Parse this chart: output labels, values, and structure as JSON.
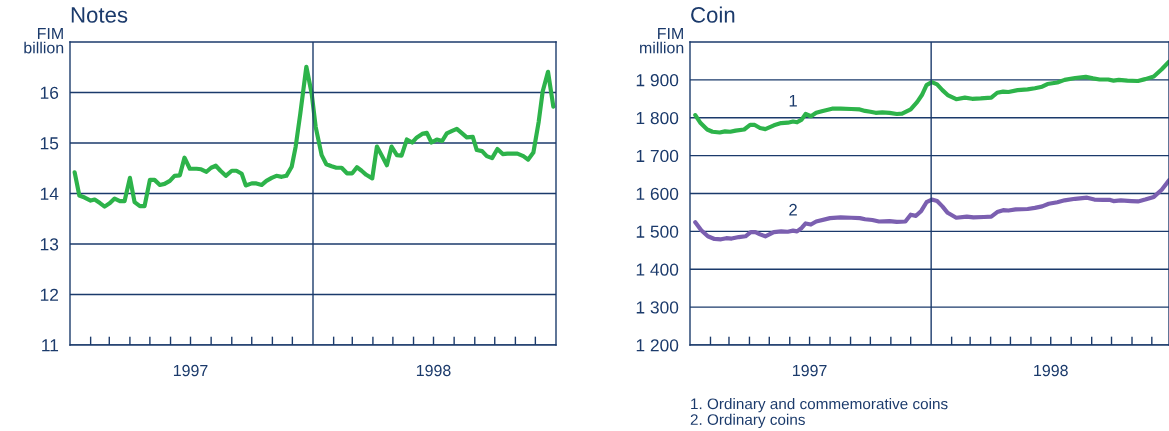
{
  "chart_data": [
    {
      "type": "line",
      "title": "Notes",
      "ylabel": "FIM\nbillion",
      "xlim": [
        "1997-01-01",
        "1999-01-01"
      ],
      "ylim": [
        11,
        17
      ],
      "yticks": [
        11,
        12,
        13,
        14,
        15,
        16
      ],
      "xticks": [
        {
          "value": "1997-02-01",
          "label": null
        },
        {
          "value": "1997-03-01",
          "label": null
        },
        {
          "value": "1997-04-01",
          "label": null
        },
        {
          "value": "1997-05-01",
          "label": null
        },
        {
          "value": "1997-06-01",
          "label": null
        },
        {
          "value": "1997-07-01",
          "label": "1997"
        },
        {
          "value": "1997-08-01",
          "label": null
        },
        {
          "value": "1997-09-01",
          "label": null
        },
        {
          "value": "1997-10-01",
          "label": null
        },
        {
          "value": "1997-11-01",
          "label": null
        },
        {
          "value": "1997-12-01",
          "label": null
        },
        {
          "value": "1998-02-01",
          "label": null
        },
        {
          "value": "1998-03-01",
          "label": null
        },
        {
          "value": "1998-04-01",
          "label": null
        },
        {
          "value": "1998-05-01",
          "label": null
        },
        {
          "value": "1998-06-01",
          "label": null
        },
        {
          "value": "1998-07-01",
          "label": "1998"
        },
        {
          "value": "1998-08-01",
          "label": null
        },
        {
          "value": "1998-09-01",
          "label": null
        },
        {
          "value": "1998-10-01",
          "label": null
        },
        {
          "value": "1998-11-01",
          "label": null
        },
        {
          "value": "1998-12-01",
          "label": null
        }
      ],
      "grid": "y",
      "ref_lines": [
        {
          "axis": "x",
          "value": "1998-01-01",
          "color": "#1b3a6b"
        }
      ],
      "series": [
        {
          "color": "#2db34a",
          "x": [
            "1997-01-08",
            "1997-01-15",
            "1997-01-23",
            "1997-02-01",
            "1997-02-07",
            "1997-02-15",
            "1997-02-22",
            "1997-03-02",
            "1997-03-09",
            "1997-03-17",
            "1997-03-24",
            "1997-04-01",
            "1997-04-08",
            "1997-04-16",
            "1997-04-23",
            "1997-05-01",
            "1997-05-08",
            "1997-05-16",
            "1997-05-23",
            "1997-05-31",
            "1997-06-07",
            "1997-06-15",
            "1997-06-22",
            "1997-06-30",
            "1997-07-10",
            "1997-07-17",
            "1997-07-25",
            "1997-08-01",
            "1997-08-08",
            "1997-08-15",
            "1997-08-23",
            "1997-09-01",
            "1997-09-08",
            "1997-09-16",
            "1997-09-22",
            "1997-10-01",
            "1997-10-08",
            "1997-10-16",
            "1997-10-23",
            "1997-10-31",
            "1997-11-07",
            "1997-11-15",
            "1997-11-22",
            "1997-11-30",
            "1997-12-06",
            "1997-12-13",
            "1997-12-22",
            "1997-12-30",
            "1998-01-05",
            "1998-01-14",
            "1998-01-21",
            "1998-01-29",
            "1998-02-05",
            "1998-02-13",
            "1998-02-21",
            "1998-03-01",
            "1998-03-08",
            "1998-03-15",
            "1998-03-22",
            "1998-03-31",
            "1998-04-07",
            "1998-04-14",
            "1998-04-22",
            "1998-04-29",
            "1998-05-07",
            "1998-05-14",
            "1998-05-22",
            "1998-05-30",
            "1998-06-06",
            "1998-06-14",
            "1998-06-21",
            "1998-06-28",
            "1998-07-06",
            "1998-07-14",
            "1998-07-21",
            "1998-07-29",
            "1998-08-05",
            "1998-08-13",
            "1998-08-20",
            "1998-08-29",
            "1998-09-04",
            "1998-09-12",
            "1998-09-19",
            "1998-09-27",
            "1998-10-05",
            "1998-10-13",
            "1998-10-20",
            "1998-10-28",
            "1998-11-04",
            "1998-11-13",
            "1998-11-20",
            "1998-11-28",
            "1998-12-06",
            "1998-12-12",
            "1998-12-20",
            "1998-12-28"
          ],
          "values": [
            14.42,
            13.96,
            13.92,
            13.86,
            13.88,
            13.81,
            13.74,
            13.81,
            13.9,
            13.85,
            13.85,
            14.31,
            13.83,
            13.75,
            13.75,
            14.27,
            14.27,
            14.17,
            14.19,
            14.25,
            14.35,
            14.36,
            14.71,
            14.49,
            14.49,
            14.48,
            14.43,
            14.51,
            14.55,
            14.45,
            14.35,
            14.45,
            14.45,
            14.39,
            14.16,
            14.2,
            14.2,
            14.17,
            14.25,
            14.31,
            14.35,
            14.33,
            14.35,
            14.53,
            14.93,
            15.59,
            16.51,
            15.98,
            15.32,
            14.76,
            14.58,
            14.54,
            14.51,
            14.51,
            14.4,
            14.4,
            14.52,
            14.45,
            14.37,
            14.3,
            14.93,
            14.76,
            14.56,
            14.93,
            14.76,
            14.75,
            15.07,
            15.01,
            15.11,
            15.18,
            15.2,
            15.01,
            15.07,
            15.04,
            15.19,
            15.24,
            15.28,
            15.19,
            15.11,
            15.12,
            14.86,
            14.84,
            14.74,
            14.7,
            14.88,
            14.78,
            14.79,
            14.79,
            14.79,
            14.74,
            14.67,
            14.81,
            15.42,
            16.02,
            16.41,
            15.72
          ]
        }
      ]
    },
    {
      "type": "line",
      "title": "Coin",
      "ylabel": "FIM\nmillion",
      "xlim": [
        "1997-01-01",
        "1998-12-27"
      ],
      "ylim": [
        1200,
        2000
      ],
      "yticks": [
        {
          "value": 1200,
          "label": "1 200"
        },
        {
          "value": 1300,
          "label": "1 300"
        },
        {
          "value": 1400,
          "label": "1 400"
        },
        {
          "value": 1500,
          "label": "1 500"
        },
        {
          "value": 1600,
          "label": "1 600"
        },
        {
          "value": 1700,
          "label": "1 700"
        },
        {
          "value": 1800,
          "label": "1 800"
        },
        {
          "value": 1900,
          "label": "1 900"
        }
      ],
      "xticks": [
        {
          "value": "1997-02-01",
          "label": null
        },
        {
          "value": "1997-03-01",
          "label": null
        },
        {
          "value": "1997-04-01",
          "label": null
        },
        {
          "value": "1997-05-01",
          "label": null
        },
        {
          "value": "1997-06-01",
          "label": null
        },
        {
          "value": "1997-07-01",
          "label": "1997"
        },
        {
          "value": "1997-08-01",
          "label": null
        },
        {
          "value": "1997-09-01",
          "label": null
        },
        {
          "value": "1997-10-01",
          "label": null
        },
        {
          "value": "1997-11-01",
          "label": null
        },
        {
          "value": "1997-12-01",
          "label": null
        },
        {
          "value": "1998-02-01",
          "label": null
        },
        {
          "value": "1998-03-01",
          "label": null
        },
        {
          "value": "1998-04-01",
          "label": null
        },
        {
          "value": "1998-05-01",
          "label": null
        },
        {
          "value": "1998-06-01",
          "label": null
        },
        {
          "value": "1998-07-01",
          "label": "1998"
        },
        {
          "value": "1998-08-01",
          "label": null
        },
        {
          "value": "1998-09-01",
          "label": null
        },
        {
          "value": "1998-10-01",
          "label": null
        },
        {
          "value": "1998-11-01",
          "label": null
        },
        {
          "value": "1998-12-01",
          "label": null
        }
      ],
      "grid": "y",
      "ref_lines": [
        {
          "axis": "x",
          "value": "1998-01-01",
          "color": "#1b3a6b"
        }
      ],
      "annotations": [
        "1. Ordinary and commemorative coins",
        "2. Ordinary coins"
      ],
      "series": [
        {
          "name": "1",
          "color": "#2db34a",
          "x": [
            "1997-01-09",
            "1997-01-17",
            "1997-01-27",
            "1997-02-04",
            "1997-02-15",
            "1997-02-23",
            "1997-03-03",
            "1997-03-11",
            "1997-03-24",
            "1997-04-02",
            "1997-04-09",
            "1997-04-17",
            "1997-04-25",
            "1997-05-08",
            "1997-05-19",
            "1997-05-29",
            "1997-06-06",
            "1997-06-12",
            "1997-06-19",
            "1997-06-25",
            "1997-07-03",
            "1997-07-11",
            "1997-07-21",
            "1997-08-04",
            "1997-08-17",
            "1997-09-02",
            "1997-09-15",
            "1997-09-23",
            "1997-10-01",
            "1997-10-09",
            "1997-10-19",
            "1997-10-30",
            "1997-11-10",
            "1997-11-18",
            "1997-12-01",
            "1997-12-11",
            "1997-12-18",
            "1997-12-25",
            "1998-01-02",
            "1998-01-10",
            "1998-01-18",
            "1998-01-26",
            "1998-02-08",
            "1998-02-21",
            "1998-03-04",
            "1998-03-17",
            "1998-04-02",
            "1998-04-11",
            "1998-04-20",
            "1998-04-28",
            "1998-05-12",
            "1998-05-27",
            "1998-06-07",
            "1998-06-18",
            "1998-06-26",
            "1998-07-11",
            "1998-07-22",
            "1998-08-07",
            "1998-08-23",
            "1998-09-03",
            "1998-09-13",
            "1998-09-26",
            "1998-10-04",
            "1998-10-12",
            "1998-10-25",
            "1998-11-10",
            "1998-11-21",
            "1998-12-04",
            "1998-12-16",
            "1998-12-27"
          ],
          "values": [
            1807,
            1786,
            1769,
            1763,
            1761,
            1764,
            1763,
            1766,
            1769,
            1781,
            1781,
            1773,
            1770,
            1780,
            1786,
            1787,
            1790,
            1788,
            1795,
            1810,
            1804,
            1813,
            1818,
            1824,
            1824,
            1823,
            1822,
            1818,
            1816,
            1813,
            1814,
            1813,
            1810,
            1811,
            1822,
            1842,
            1860,
            1886,
            1894,
            1888,
            1873,
            1860,
            1849,
            1853,
            1850,
            1851,
            1853,
            1866,
            1869,
            1868,
            1873,
            1875,
            1878,
            1882,
            1889,
            1893,
            1900,
            1905,
            1908,
            1904,
            1901,
            1901,
            1898,
            1900,
            1898,
            1897,
            1902,
            1909,
            1928,
            1948
          ]
        },
        {
          "name": "2",
          "color": "#7b5fb0",
          "x": [
            "1997-01-09",
            "1997-01-18",
            "1997-01-28",
            "1997-02-07",
            "1997-02-17",
            "1997-02-25",
            "1997-03-05",
            "1997-03-16",
            "1997-03-26",
            "1997-04-03",
            "1997-04-10",
            "1997-04-17",
            "1997-04-25",
            "1997-05-08",
            "1997-05-19",
            "1997-05-29",
            "1997-06-06",
            "1997-06-12",
            "1997-06-19",
            "1997-06-25",
            "1997-07-03",
            "1997-07-11",
            "1997-08-01",
            "1997-08-17",
            "1997-09-02",
            "1997-09-15",
            "1997-09-23",
            "1997-10-04",
            "1997-10-14",
            "1997-10-30",
            "1997-11-10",
            "1997-11-23",
            "1997-12-01",
            "1997-12-09",
            "1997-12-17",
            "1997-12-25",
            "1998-01-02",
            "1998-01-10",
            "1998-01-18",
            "1998-01-26",
            "1998-02-08",
            "1998-02-24",
            "1998-03-06",
            "1998-03-22",
            "1998-04-02",
            "1998-04-11",
            "1998-04-20",
            "1998-04-28",
            "1998-05-09",
            "1998-05-27",
            "1998-06-07",
            "1998-06-18",
            "1998-06-28",
            "1998-07-11",
            "1998-07-22",
            "1998-08-07",
            "1998-08-25",
            "1998-09-05",
            "1998-09-18",
            "1998-09-29",
            "1998-10-04",
            "1998-10-15",
            "1998-10-31",
            "1998-11-10",
            "1998-11-21",
            "1998-12-04",
            "1998-12-16",
            "1998-12-27"
          ],
          "values": [
            1524,
            1503,
            1487,
            1480,
            1479,
            1482,
            1481,
            1485,
            1487,
            1498,
            1498,
            1492,
            1487,
            1498,
            1500,
            1499,
            1502,
            1500,
            1509,
            1521,
            1518,
            1526,
            1535,
            1537,
            1536,
            1535,
            1532,
            1530,
            1526,
            1527,
            1525,
            1526,
            1544,
            1541,
            1554,
            1577,
            1584,
            1580,
            1566,
            1549,
            1536,
            1539,
            1537,
            1538,
            1539,
            1551,
            1556,
            1555,
            1558,
            1559,
            1562,
            1566,
            1573,
            1577,
            1582,
            1586,
            1589,
            1584,
            1583,
            1583,
            1580,
            1582,
            1580,
            1579,
            1584,
            1591,
            1610,
            1635
          ]
        }
      ]
    }
  ]
}
